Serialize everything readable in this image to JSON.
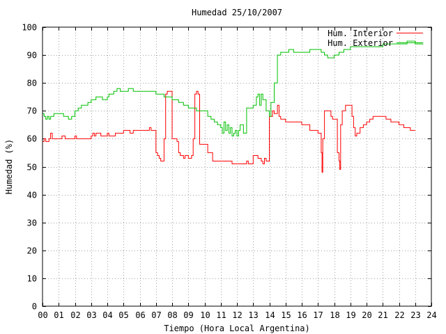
{
  "chart_data": {
    "type": "line",
    "title": "Humedad 25/10/2007",
    "xlabel": "Tiempo (Hora Local Argentina)",
    "ylabel": "Humedad (%)",
    "xlim": [
      0,
      24
    ],
    "ylim": [
      0,
      100
    ],
    "grid": true,
    "legend_position": "top-right",
    "x_ticks": [
      "00",
      "01",
      "02",
      "03",
      "04",
      "05",
      "06",
      "07",
      "08",
      "09",
      "10",
      "11",
      "12",
      "13",
      "14",
      "15",
      "16",
      "17",
      "18",
      "19",
      "20",
      "21",
      "22",
      "23",
      "24"
    ],
    "y_ticks": [
      "0",
      "10",
      "20",
      "30",
      "40",
      "50",
      "60",
      "70",
      "80",
      "90",
      "100"
    ],
    "series": [
      {
        "name": "Hum. Interior",
        "color": "#ff0000",
        "x": [
          0.0,
          0.1,
          0.2,
          0.4,
          0.5,
          0.6,
          0.7,
          1.1,
          1.2,
          1.4,
          2.0,
          2.1,
          3.0,
          3.1,
          3.2,
          3.3,
          3.5,
          3.6,
          4.0,
          4.1,
          4.4,
          4.5,
          5.0,
          5.4,
          5.6,
          6.0,
          6.4,
          6.6,
          6.7,
          6.8,
          7.0,
          7.1,
          7.2,
          7.3,
          7.4,
          7.5,
          7.6,
          7.7,
          8.0,
          8.1,
          8.2,
          8.3,
          8.4,
          8.5,
          8.7,
          8.8,
          9.0,
          9.1,
          9.2,
          9.3,
          9.4,
          9.5,
          9.6,
          9.7,
          10.0,
          10.2,
          10.5,
          11.0,
          11.5,
          11.7,
          12.0,
          12.2,
          12.5,
          12.6,
          12.7,
          13.0,
          13.1,
          13.2,
          13.3,
          13.5,
          13.6,
          13.7,
          13.8,
          14.0,
          14.1,
          14.2,
          14.3,
          14.5,
          14.6,
          14.7,
          15.0,
          15.5,
          16.0,
          16.1,
          16.5,
          17.0,
          17.1,
          17.2,
          17.25,
          17.3,
          17.4,
          17.5,
          17.8,
          17.9,
          18.0,
          18.2,
          18.3,
          18.35,
          18.4,
          18.5,
          18.7,
          18.8,
          19.0,
          19.1,
          19.2,
          19.3,
          19.4,
          19.6,
          19.8,
          20.0,
          20.2,
          20.4,
          21.0,
          21.2,
          21.5,
          21.7,
          22.0,
          22.3,
          22.5,
          22.7,
          23.0
        ],
        "values": [
          59,
          60,
          59,
          60,
          62,
          60,
          60,
          60,
          61,
          60,
          61,
          60,
          61,
          62,
          61,
          62,
          62,
          61,
          62,
          61,
          61,
          62,
          63,
          62,
          63,
          63,
          63,
          64,
          63,
          63,
          55,
          54,
          53,
          52,
          52,
          60,
          76,
          77,
          60,
          60,
          60,
          59,
          55,
          54,
          53,
          54,
          53,
          53,
          54,
          60,
          76,
          77,
          76,
          58,
          58,
          55,
          52,
          52,
          52,
          51,
          51,
          51,
          51,
          52,
          51,
          54,
          54,
          54,
          53,
          52,
          51,
          53,
          52,
          68,
          68,
          70,
          69,
          72,
          68,
          67,
          66,
          66,
          65,
          65,
          63,
          62,
          62,
          55,
          48,
          60,
          70,
          70,
          68,
          67,
          67,
          55,
          52,
          49,
          65,
          70,
          72,
          72,
          72,
          68,
          64,
          61,
          62,
          64,
          65,
          66,
          67,
          68,
          68,
          67,
          66,
          66,
          65,
          64,
          64,
          63,
          63
        ]
      },
      {
        "name": "Hum. Exterior",
        "color": "#00c000",
        "x": [
          0.0,
          0.1,
          0.2,
          0.3,
          0.4,
          0.5,
          0.7,
          1.0,
          1.3,
          1.5,
          1.6,
          1.8,
          2.0,
          2.2,
          2.4,
          2.6,
          2.8,
          3.0,
          3.3,
          3.5,
          3.7,
          4.0,
          4.1,
          4.2,
          4.4,
          4.6,
          4.8,
          5.0,
          5.3,
          5.6,
          5.8,
          6.0,
          6.5,
          6.8,
          7.0,
          7.5,
          8.0,
          8.4,
          8.7,
          9.0,
          9.3,
          9.5,
          9.7,
          10.0,
          10.2,
          10.4,
          10.6,
          10.8,
          11.0,
          11.1,
          11.2,
          11.3,
          11.4,
          11.5,
          11.6,
          11.7,
          11.8,
          11.9,
          12.0,
          12.1,
          12.2,
          12.4,
          12.6,
          12.8,
          13.0,
          13.2,
          13.3,
          13.4,
          13.5,
          13.6,
          13.8,
          14.0,
          14.1,
          14.3,
          14.5,
          14.7,
          15.0,
          15.2,
          15.5,
          16.0,
          16.5,
          17.0,
          17.2,
          17.4,
          17.6,
          18.0,
          18.3,
          18.6,
          19.0,
          19.5,
          20.0,
          20.5,
          21.0,
          21.5,
          22.0,
          22.5,
          23.0,
          23.5
        ],
        "values": [
          69,
          68,
          67,
          68,
          67,
          68,
          69,
          69,
          68,
          68,
          67,
          68,
          70,
          71,
          72,
          72,
          73,
          74,
          75,
          75,
          74,
          75,
          76,
          76,
          77,
          78,
          77,
          77,
          78,
          77,
          77,
          77,
          77,
          77,
          76,
          75,
          74,
          73,
          72,
          71,
          71,
          70,
          70,
          70,
          68,
          67,
          66,
          65,
          64,
          62,
          66,
          63,
          65,
          62,
          64,
          61,
          62,
          63,
          61,
          63,
          65,
          62,
          71,
          71,
          72,
          75,
          76,
          72,
          76,
          74,
          70,
          68,
          73,
          80,
          90,
          91,
          91,
          92,
          91,
          91,
          92,
          92,
          91,
          90,
          89,
          90,
          91,
          92,
          93,
          93,
          93,
          93,
          94,
          94,
          94,
          95,
          94,
          94
        ]
      }
    ]
  }
}
